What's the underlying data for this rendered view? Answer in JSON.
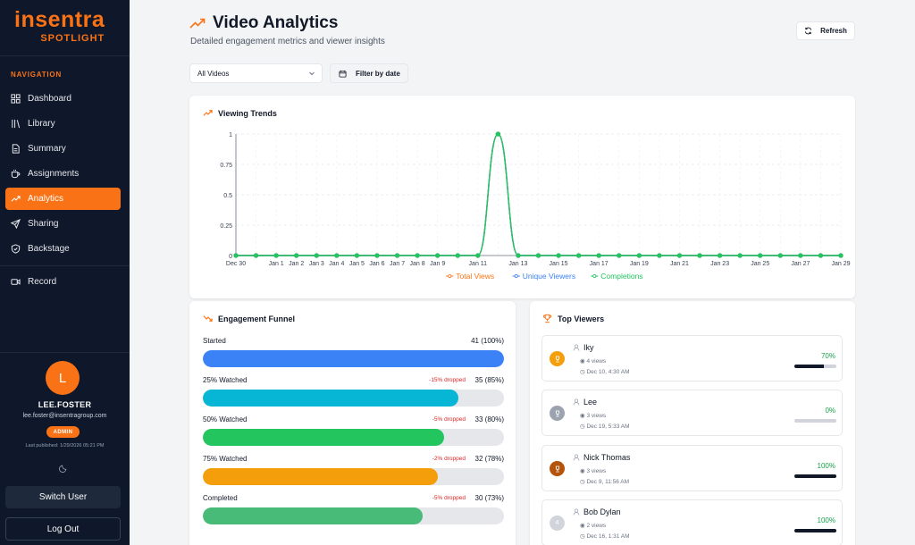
{
  "brand": {
    "name": "insentra",
    "sub": "SPOTLIGHT"
  },
  "nav": {
    "heading": "NAVIGATION",
    "items": [
      {
        "label": "Dashboard",
        "icon": "dashboard-icon"
      },
      {
        "label": "Library",
        "icon": "library-icon"
      },
      {
        "label": "Summary",
        "icon": "document-icon"
      },
      {
        "label": "Assignments",
        "icon": "coffee-cup-icon"
      },
      {
        "label": "Analytics",
        "icon": "trending-up-icon",
        "active": true
      },
      {
        "label": "Sharing",
        "icon": "send-icon"
      },
      {
        "label": "Backstage",
        "icon": "shield-icon"
      },
      {
        "label": "Record",
        "icon": "video-icon"
      }
    ]
  },
  "user": {
    "initial": "L",
    "name": "LEE.FOSTER",
    "email": "lee.foster@insentragroup.com",
    "role": "ADMIN",
    "last_published": "Last published: 1/29/2026 05:21 PM"
  },
  "footer": {
    "switch_user": "Switch User",
    "logout": "Log Out"
  },
  "header": {
    "title": "Video Analytics",
    "subtitle": "Detailed engagement metrics and viewer insights",
    "refresh": "Refresh"
  },
  "filters": {
    "video_select": "All Videos",
    "filter_by_date": "Filter by date"
  },
  "trends": {
    "title": "Viewing Trends",
    "chart_data": {
      "type": "line",
      "x": [
        "Dec 30",
        "Dec 31",
        "Jan 1",
        "Jan 2",
        "Jan 3",
        "Jan 4",
        "Jan 5",
        "Jan 6",
        "Jan 7",
        "Jan 8",
        "Jan 9",
        "Jan 10",
        "Jan 11",
        "Jan 12",
        "Jan 13",
        "Jan 14",
        "Jan 15",
        "Jan 16",
        "Jan 17",
        "Jan 18",
        "Jan 19",
        "Jan 20",
        "Jan 21",
        "Jan 22",
        "Jan 23",
        "Jan 24",
        "Jan 25",
        "Jan 26",
        "Jan 27",
        "Jan 28",
        "Jan 29"
      ],
      "x_tick_labels": [
        "Dec 30",
        "Jan 1",
        "Jan 2",
        "Jan 3",
        "Jan 4",
        "Jan 5",
        "Jan 6",
        "Jan 7",
        "Jan 8",
        "Jan 9",
        "Jan 11",
        "Jan 13",
        "Jan 15",
        "Jan 17",
        "Jan 19",
        "Jan 21",
        "Jan 23",
        "Jan 25",
        "Jan 27",
        "Jan 29"
      ],
      "series": [
        {
          "name": "Total Views",
          "color": "#f97316",
          "values": [
            0,
            0,
            0,
            0,
            0,
            0,
            0,
            0,
            0,
            0,
            0,
            0,
            0,
            1,
            0,
            0,
            0,
            0,
            0,
            0,
            0,
            0,
            0,
            0,
            0,
            0,
            0,
            0,
            0,
            0,
            0
          ]
        },
        {
          "name": "Unique Viewers",
          "color": "#3b82f6",
          "values": [
            0,
            0,
            0,
            0,
            0,
            0,
            0,
            0,
            0,
            0,
            0,
            0,
            0,
            1,
            0,
            0,
            0,
            0,
            0,
            0,
            0,
            0,
            0,
            0,
            0,
            0,
            0,
            0,
            0,
            0,
            0
          ]
        },
        {
          "name": "Completions",
          "color": "#22c55e",
          "values": [
            0,
            0,
            0,
            0,
            0,
            0,
            0,
            0,
            0,
            0,
            0,
            0,
            0,
            1,
            0,
            0,
            0,
            0,
            0,
            0,
            0,
            0,
            0,
            0,
            0,
            0,
            0,
            0,
            0,
            0,
            0
          ]
        }
      ],
      "y_ticks": [
        "0",
        "0.25",
        "0.5",
        "0.75",
        "1"
      ],
      "ylim": [
        0,
        1
      ],
      "grid": true,
      "legend": "bottom-center"
    }
  },
  "funnel": {
    "title": "Engagement Funnel",
    "stages": [
      {
        "label": "Started",
        "count": "41 (100%)",
        "drop": "",
        "pct": 100,
        "color": "#3b82f6"
      },
      {
        "label": "25% Watched",
        "count": "35 (85%)",
        "drop": "-15% dropped",
        "pct": 85,
        "color": "#06b6d4"
      },
      {
        "label": "50% Watched",
        "count": "33 (80%)",
        "drop": "-5% dropped",
        "pct": 80,
        "color": "#22c55e"
      },
      {
        "label": "75% Watched",
        "count": "32 (78%)",
        "drop": "-2% dropped",
        "pct": 78,
        "color": "#f59e0b"
      },
      {
        "label": "Completed",
        "count": "30 (73%)",
        "drop": "-5% dropped",
        "pct": 73,
        "color": "#48bb78"
      }
    ]
  },
  "top_viewers": {
    "title": "Top Viewers",
    "viewers": [
      {
        "rank_color": "#f59e0b",
        "rank_icon": "trophy-icon",
        "name": "Iky",
        "views": "4 views",
        "date": "Dec 10, 4:30 AM",
        "pct_label": "70%",
        "pct": 70
      },
      {
        "rank_color": "#9ca3af",
        "rank_icon": "trophy-icon",
        "name": "Lee",
        "views": "3 views",
        "date": "Dec 19, 5:33 AM",
        "pct_label": "0%",
        "pct": 0
      },
      {
        "rank_color": "#b45309",
        "rank_icon": "trophy-icon",
        "name": "Nick Thomas",
        "views": "3 views",
        "date": "Dec 9, 11:56 AM",
        "pct_label": "100%",
        "pct": 100
      },
      {
        "rank_color": "#d1d5db",
        "rank_icon": "",
        "rank": "4",
        "name": "Bob Dylan",
        "views": "2 views",
        "date": "Dec 16, 1:31 AM",
        "pct_label": "100%",
        "pct": 100
      }
    ]
  }
}
